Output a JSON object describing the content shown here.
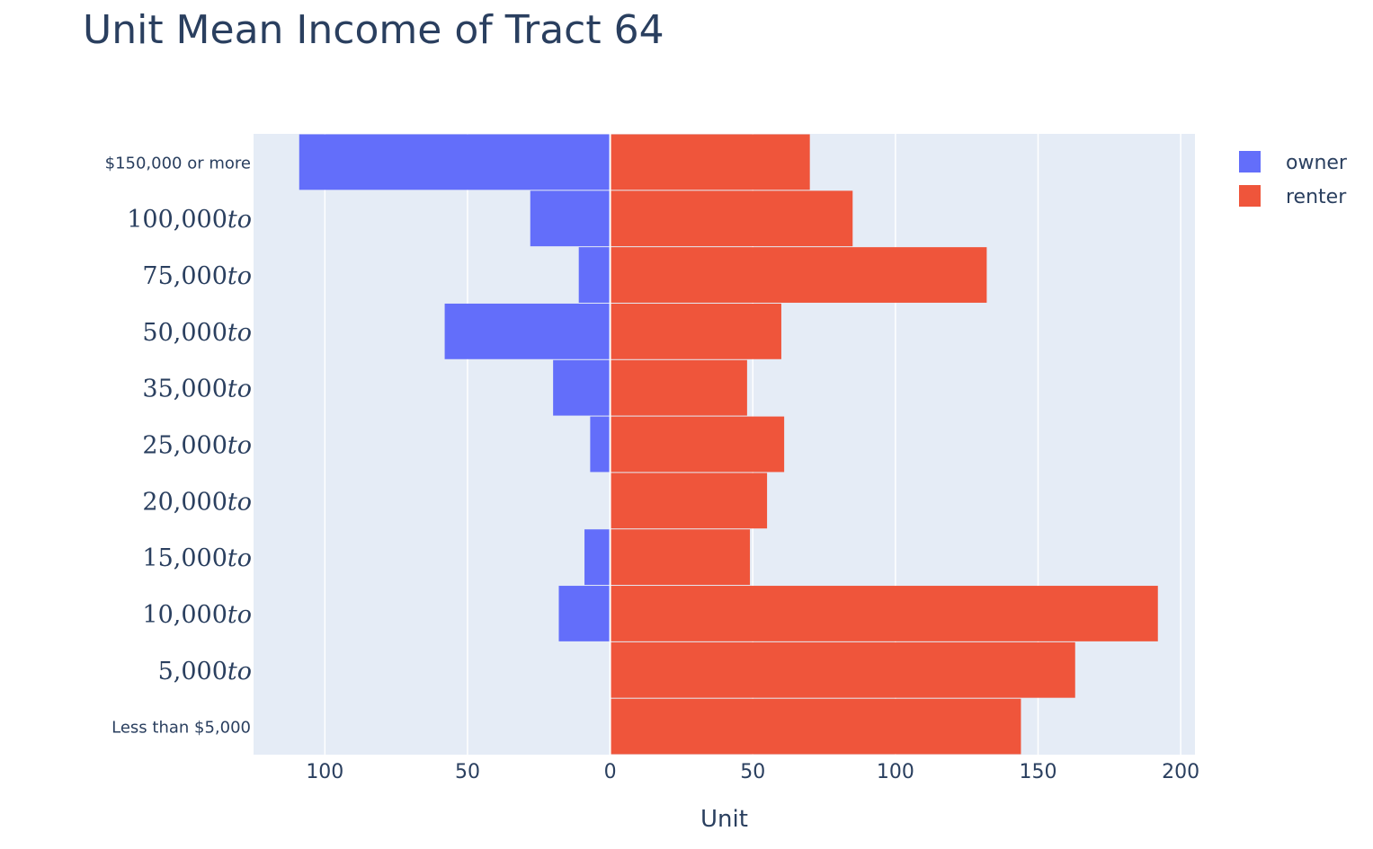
{
  "chart_data": {
    "type": "bar",
    "orientation": "horizontal",
    "barmode": "relative",
    "title": "Unit Mean Income of Tract 64",
    "xlabel": "Unit",
    "ylabel": "",
    "xlim": [
      -125,
      205
    ],
    "xticks": [
      -100,
      -50,
      0,
      50,
      100,
      150,
      200
    ],
    "xtick_labels": [
      "100",
      "50",
      "0",
      "50",
      "100",
      "150",
      "200"
    ],
    "categories": [
      {
        "main": "Less than $5,000",
        "math": false
      },
      {
        "main": "5,000",
        "suffix": "to",
        "math": true
      },
      {
        "main": "10,000",
        "suffix": "to",
        "math": true
      },
      {
        "main": "15,000",
        "suffix": "to",
        "math": true
      },
      {
        "main": "20,000",
        "suffix": "to",
        "math": true
      },
      {
        "main": "25,000",
        "suffix": "to",
        "math": true
      },
      {
        "main": "35,000",
        "suffix": "to",
        "math": true
      },
      {
        "main": "50,000",
        "suffix": "to",
        "math": true
      },
      {
        "main": "75,000",
        "suffix": "to",
        "math": true
      },
      {
        "main": "100,000",
        "suffix": "to",
        "math": true
      },
      {
        "main": "$150,000 or more",
        "math": false
      }
    ],
    "series": [
      {
        "name": "owner",
        "color": "#636efa",
        "values": [
          0,
          0,
          -18,
          -9,
          0,
          -7,
          -20,
          -58,
          -11,
          -28,
          -109
        ]
      },
      {
        "name": "renter",
        "color": "#ef553b",
        "values": [
          144,
          163,
          192,
          49,
          55,
          61,
          48,
          60,
          132,
          85,
          70
        ]
      }
    ],
    "grid": true,
    "legend_position": "top-right",
    "plot_background": "#e5ecf6"
  }
}
